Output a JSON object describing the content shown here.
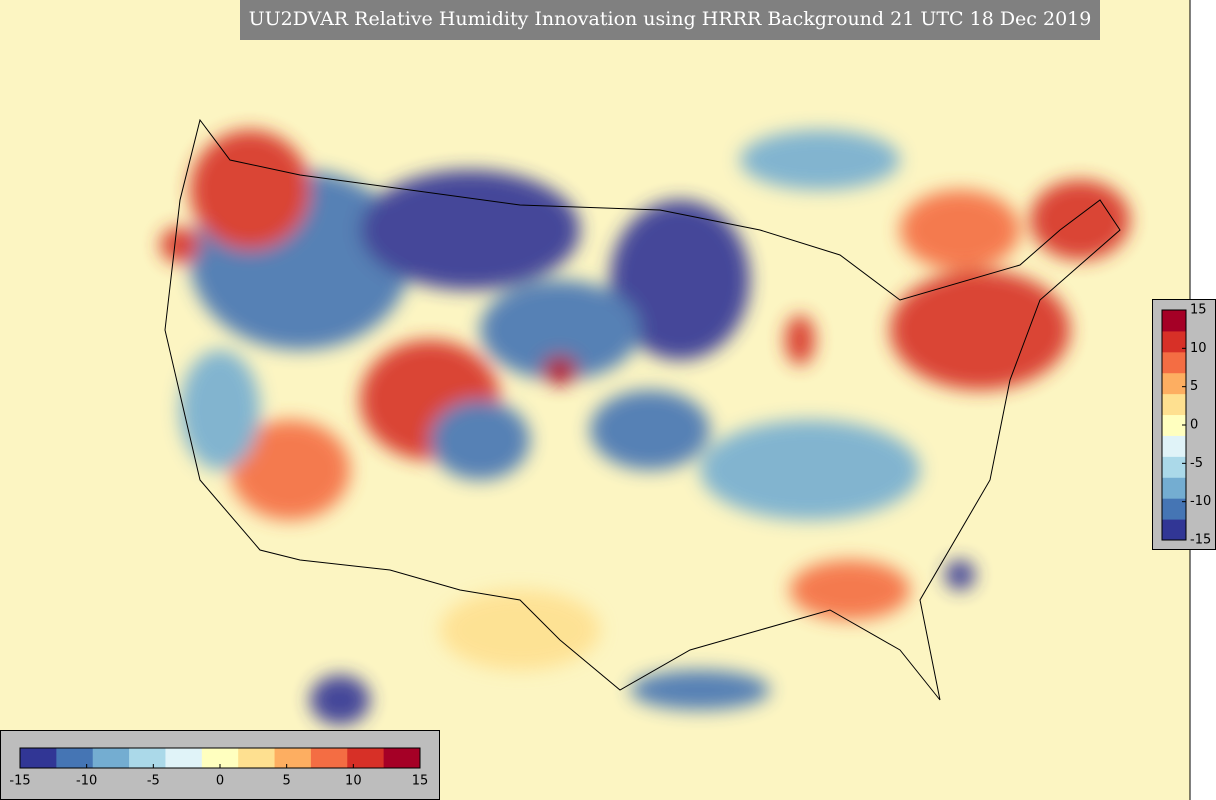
{
  "title": "UU2DVAR Relative Humidity Innovation using HRRR Background 21 UTC 18 Dec 2019",
  "colorbars": [
    {
      "orientation": "horizontal",
      "lim": [
        -15,
        15
      ],
      "ticks": [
        -15,
        -10,
        -5,
        0,
        5,
        10,
        15
      ],
      "colors": [
        "#313695",
        "#4575b4",
        "#74add1",
        "#abd9e9",
        "#e0f3f8",
        "#ffffbf",
        "#fee090",
        "#fdae61",
        "#f46d43",
        "#d73027",
        "#a50026"
      ]
    },
    {
      "orientation": "vertical",
      "lim": [
        -15,
        15
      ],
      "ticks": [
        15,
        10,
        5,
        0,
        -5,
        -10,
        -15
      ],
      "colors": [
        "#313695",
        "#4575b4",
        "#74add1",
        "#abd9e9",
        "#e0f3f8",
        "#ffffbf",
        "#fee090",
        "#fdae61",
        "#f46d43",
        "#d73027",
        "#a50026"
      ]
    }
  ]
}
